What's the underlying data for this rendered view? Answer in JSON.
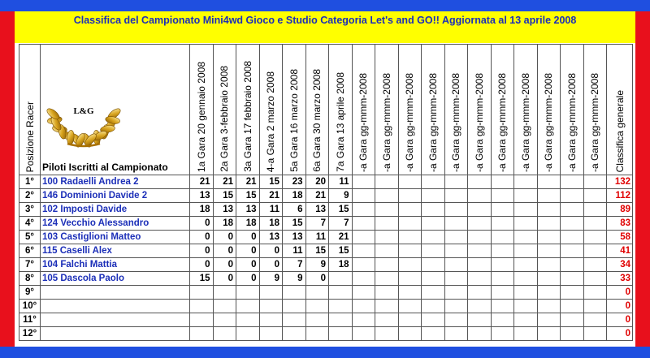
{
  "title": "Classifica del Campionato Mini4wd Gioco e Studio Categoria  Let's and GO!! Aggiornata al 13 aprile 2008",
  "colors": {
    "border_blue": "#1f4fe0",
    "border_red": "#e8101c",
    "band_yellow": "#ffff00",
    "name_blue": "#1c2fb8",
    "total_red": "#e00000"
  },
  "logo": {
    "text": "L&G",
    "icon": "laurel-wreath-icon"
  },
  "headers": {
    "position": "Posizione Racer",
    "pilots": "Piloti Iscritti al Campionato",
    "races": [
      "1a Gara 20 gennaio 2008",
      "2a Gara 3-febbraio 2008",
      "3a Gara 17 febbraio 2008",
      "4-a Gara 2 marzo 2008",
      "5a Gara 16 marzo 2008",
      "6a Gara 30 marzo 2008",
      "7a Gara 13 aprile 2008",
      "-a Gara gg-mmm-2008",
      "-a Gara gg-mmm-2008",
      "-a Gara gg-mmm-2008",
      "-a Gara gg-mmm-2008",
      "-a Gara gg-mmm-2008",
      "-a Gara gg-mmm-2008",
      "-a Gara gg-mmm-2008",
      "-a Gara gg-mmm-2008",
      "-a Gara gg-mmm-2008",
      "-a Gara gg-mmm-2008",
      "-a Gara gg-mmm-2008"
    ],
    "total": "Classifica generale"
  },
  "rows": [
    {
      "pos": "1°",
      "name": "100 Radaelli Andrea 2",
      "scores": [
        "21",
        "21",
        "21",
        "15",
        "23",
        "20",
        "11"
      ],
      "total": "132"
    },
    {
      "pos": "2°",
      "name": "146 Dominioni Davide 2",
      "scores": [
        "13",
        "15",
        "15",
        "21",
        "18",
        "21",
        "9"
      ],
      "total": "112"
    },
    {
      "pos": "3°",
      "name": "102 Imposti Davide",
      "scores": [
        "18",
        "13",
        "13",
        "11",
        "6",
        "13",
        "15"
      ],
      "total": "89"
    },
    {
      "pos": "4°",
      "name": "124 Vecchio Alessandro",
      "scores": [
        "0",
        "18",
        "18",
        "18",
        "15",
        "7",
        "7"
      ],
      "total": "83"
    },
    {
      "pos": "5°",
      "name": "103 Castiglioni Matteo",
      "scores": [
        "0",
        "0",
        "0",
        "13",
        "13",
        "11",
        "21"
      ],
      "total": "58"
    },
    {
      "pos": "6°",
      "name": "115 Caselli Alex",
      "scores": [
        "0",
        "0",
        "0",
        "0",
        "11",
        "15",
        "15"
      ],
      "total": "41"
    },
    {
      "pos": "7°",
      "name": "104 Falchi Mattia",
      "scores": [
        "0",
        "0",
        "0",
        "0",
        "7",
        "9",
        "18"
      ],
      "total": "34"
    },
    {
      "pos": "8°",
      "name": "105 Dascola Paolo",
      "scores": [
        "15",
        "0",
        "0",
        "9",
        "9",
        "0",
        ""
      ],
      "total": "33"
    },
    {
      "pos": "9°",
      "name": "",
      "scores": [
        "",
        "",
        "",
        "",
        "",
        "",
        ""
      ],
      "total": "0"
    },
    {
      "pos": "10°",
      "name": "",
      "scores": [
        "",
        "",
        "",
        "",
        "",
        "",
        ""
      ],
      "total": "0"
    },
    {
      "pos": "11°",
      "name": "",
      "scores": [
        "",
        "",
        "",
        "",
        "",
        "",
        ""
      ],
      "total": "0"
    },
    {
      "pos": "12°",
      "name": "",
      "scores": [
        "",
        "",
        "",
        "",
        "",
        "",
        ""
      ],
      "total": "0"
    }
  ]
}
